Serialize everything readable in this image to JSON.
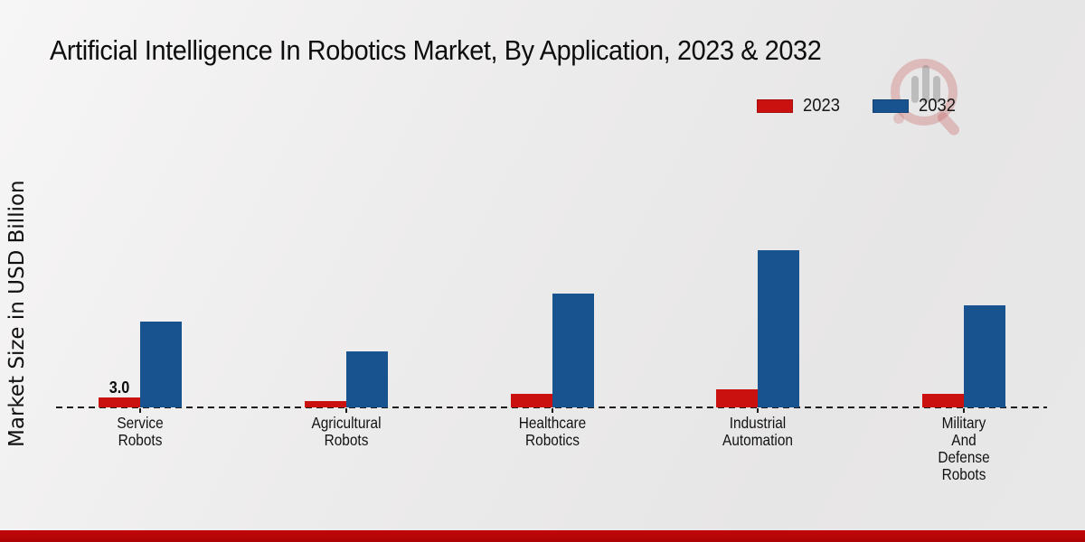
{
  "title": "Artificial Intelligence In Robotics Market, By Application, 2023 & 2032",
  "y_axis_label": "Market Size in USD Billion",
  "legend": {
    "position": "top-right",
    "items": [
      {
        "label": "2023",
        "color": "#cb1010"
      },
      {
        "label": "2032",
        "color": "#19538f"
      }
    ]
  },
  "colors": {
    "series_2023": "#cb1010",
    "series_2032": "#19538f",
    "axis_line": "#1c1c1c",
    "text": "#121212",
    "bottom_accent_strip": "#b30505",
    "background": "#eae9e9"
  },
  "icons": {
    "watermark": "magnifier-bar-chart-logo-icon"
  },
  "chart_data": {
    "type": "bar",
    "title": "Artificial Intelligence In Robotics Market, By Application, 2023 & 2032",
    "xlabel": "",
    "ylabel": "Market Size in USD Billion",
    "categories": [
      "Service Robots",
      "Agricultural Robots",
      "Healthcare Robotics",
      "Industrial Automation",
      "Military And Defense Robots"
    ],
    "category_display_lines": [
      [
        "Service",
        "Robots"
      ],
      [
        "Agricultural",
        "Robots"
      ],
      [
        "Healthcare",
        "Robotics"
      ],
      [
        "Industrial",
        "Automation"
      ],
      [
        "Military",
        "And",
        "Defense",
        "Robots"
      ]
    ],
    "series": [
      {
        "name": "2023",
        "color": "#cb1010",
        "values": [
          3.0,
          1.9,
          4.1,
          5.4,
          4.0
        ]
      },
      {
        "name": "2032",
        "color": "#19538f",
        "values": [
          26.0,
          17.0,
          34.6,
          47.5,
          30.8
        ]
      }
    ],
    "data_labels": [
      {
        "category_index": 0,
        "series": "2023",
        "text": "3.0"
      }
    ],
    "notes": {
      "values_estimated": "Only the 3.0 label is printed on the chart; other values estimated from bar heights",
      "y_axis_ticks_visible": false,
      "x_axis_style": "dashed",
      "grid": "off",
      "legend_position": "top-right"
    },
    "ylim": [
      0,
      50
    ]
  }
}
